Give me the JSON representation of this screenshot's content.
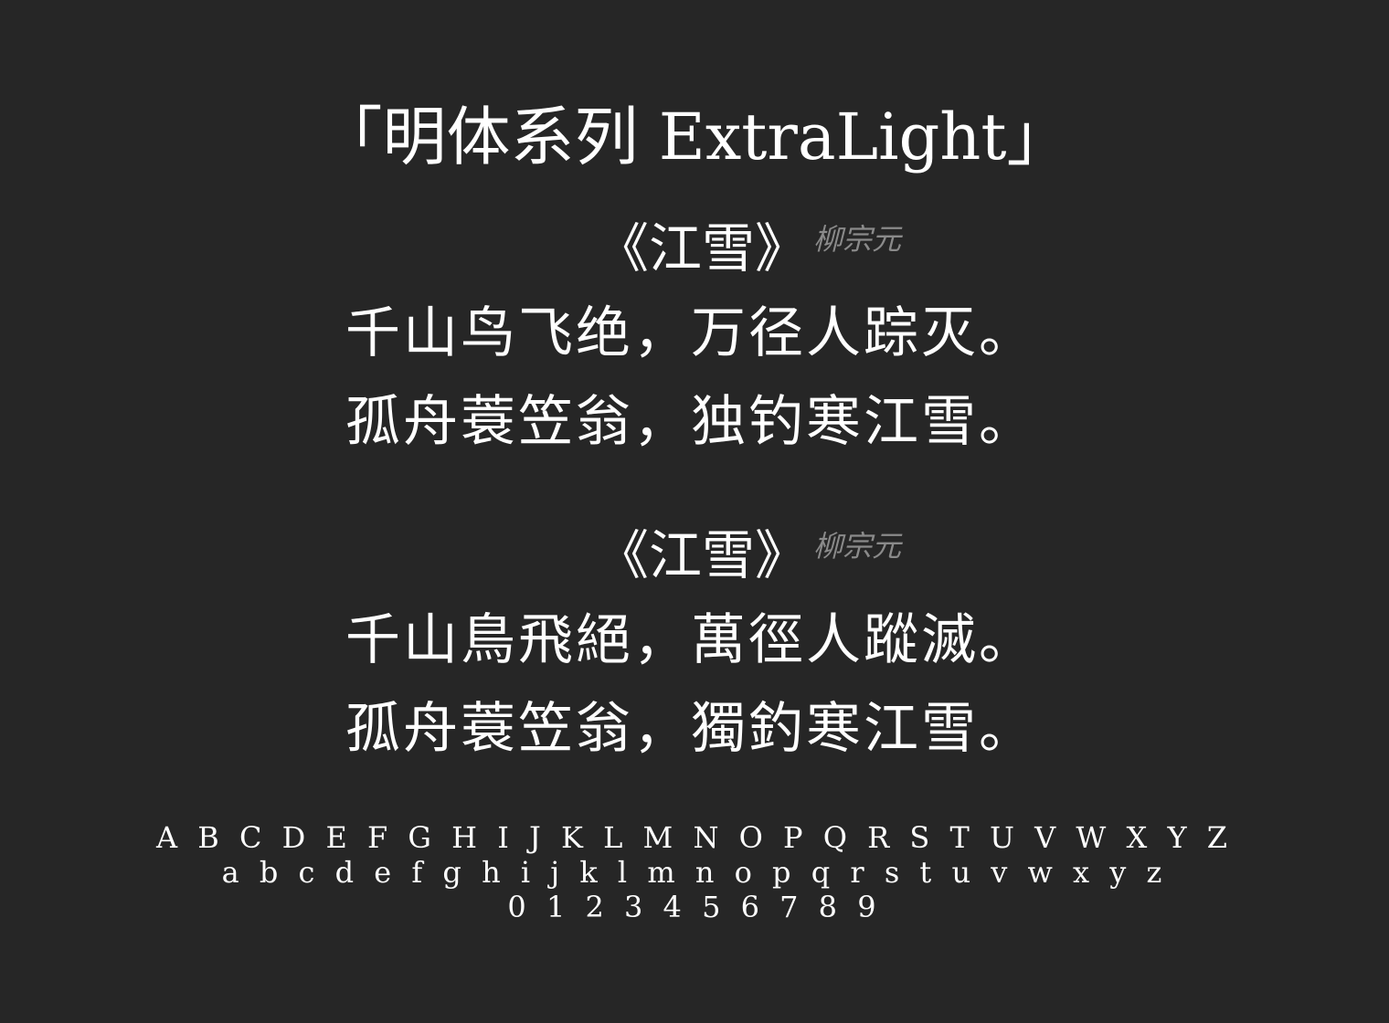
{
  "title": "「明体系列 ExtraLight」",
  "poems": [
    {
      "title": "《江雪》",
      "author": "柳宗元",
      "lines": [
        "千山鸟飞绝，万径人踪灭。",
        "孤舟蓑笠翁，独钓寒江雪。"
      ]
    },
    {
      "title": "《江雪》",
      "author": "柳宗元",
      "lines": [
        "千山鳥飛絕，萬徑人蹤滅。",
        "孤舟蓑笠翁，獨釣寒江雪。"
      ]
    }
  ],
  "specimen": {
    "uppercase": "A B C D E F G H I J K L M N O P Q R S T U V W X Y Z",
    "lowercase": "a b c d e f g h i j k l m n o p q r s t u v w x y z",
    "digits": "0 1 2 3 4 5 6 7 8 9"
  }
}
